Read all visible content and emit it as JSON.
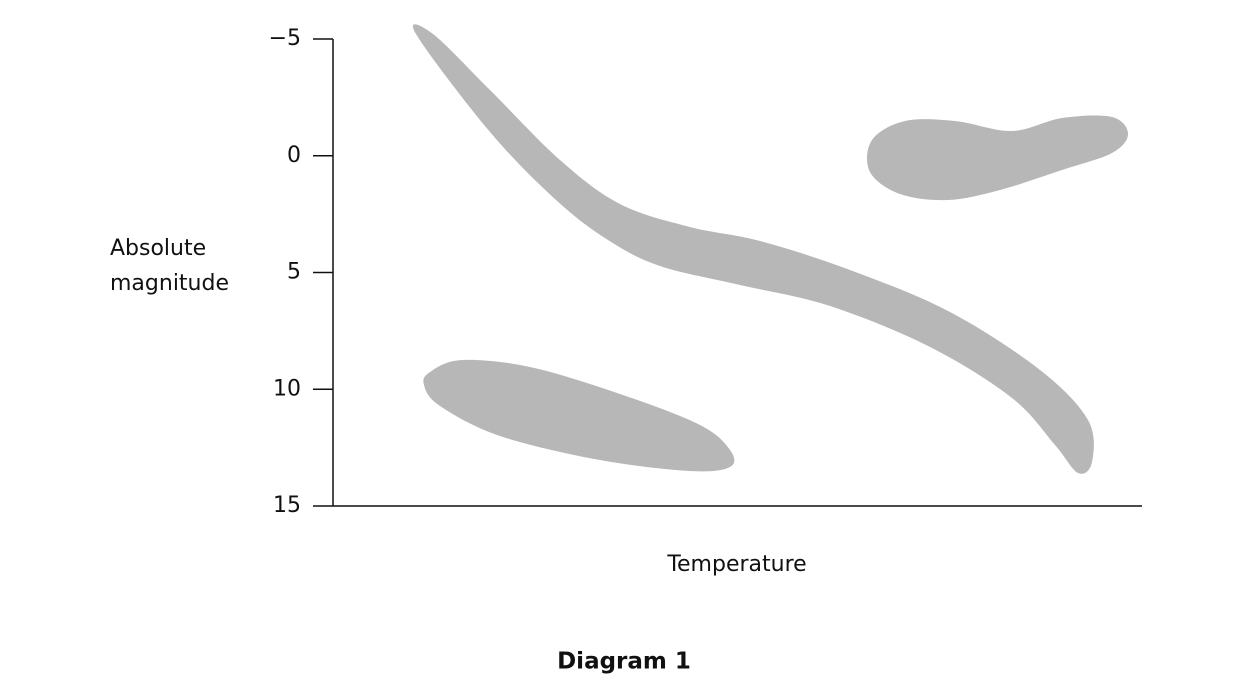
{
  "chart_data": {
    "type": "region",
    "title": "Diagram 1",
    "ylabel": [
      "Absolute",
      "magnitude"
    ],
    "xlabel": "Temperature",
    "ylim": [
      -5,
      15
    ],
    "y_inverted": true,
    "yticks": [
      {
        "value": -5,
        "label": "−5"
      },
      0,
      5,
      10,
      15
    ],
    "color": "#b7b7b7"
  }
}
